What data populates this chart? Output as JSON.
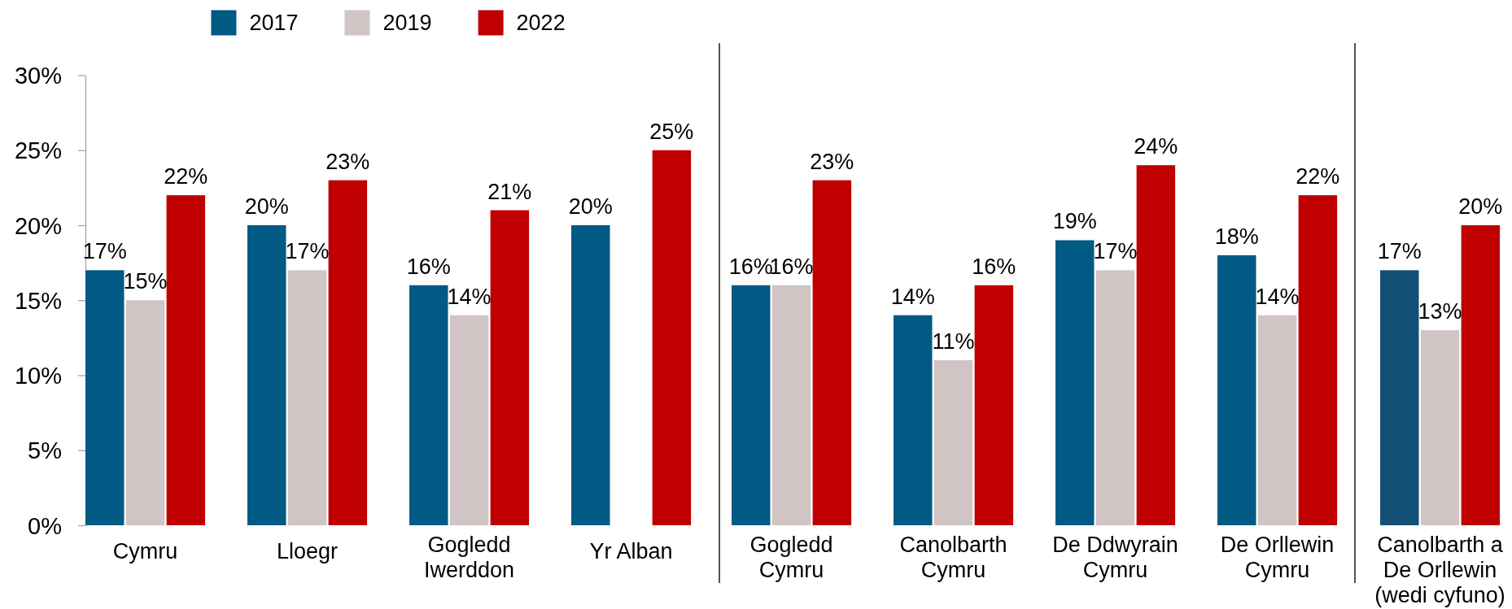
{
  "chart_data": [
    {
      "type": "bar",
      "categories": [
        "Cymru",
        "Lloegr",
        "Gogledd\nIwerddon",
        "Yr Alban"
      ],
      "series": [
        {
          "name": "2017",
          "color": "#005a84",
          "values": [
            17,
            20,
            16,
            20
          ],
          "value_labels": [
            "17%",
            "20%",
            "16%",
            "20%"
          ]
        },
        {
          "name": "2019",
          "color": "#d0c4c4",
          "values": [
            15,
            17,
            14,
            null
          ],
          "value_labels": [
            "15%",
            "17%",
            "14%",
            null
          ]
        },
        {
          "name": "2022",
          "color": "#c00000",
          "values": [
            22,
            23,
            21,
            25
          ],
          "value_labels": [
            "22%",
            "23%",
            "21%",
            "25%"
          ]
        }
      ],
      "ylim": [
        0,
        30
      ],
      "yticks": [
        {
          "value": 0,
          "label": "0%"
        },
        {
          "value": 5,
          "label": "5%"
        },
        {
          "value": 10,
          "label": "10%"
        },
        {
          "value": 15,
          "label": "15%"
        },
        {
          "value": 20,
          "label": "20%"
        },
        {
          "value": 25,
          "label": "25%"
        },
        {
          "value": 30,
          "label": "30%"
        }
      ],
      "legend": "top"
    },
    {
      "type": "bar",
      "categories": [
        "Gogledd\nCymru",
        "Canolbarth\nCymru",
        "De Ddwyrain\nCymru",
        "De Orllewin\nCymru"
      ],
      "series": [
        {
          "color": "#005a84",
          "values": [
            16,
            14,
            19,
            18
          ],
          "value_labels": [
            "16%",
            "14%",
            "19%",
            "18%"
          ]
        },
        {
          "color": "#d0c4c4",
          "values": [
            16,
            11,
            17,
            14
          ],
          "value_labels": [
            "16%",
            "11%",
            "17%",
            "14%"
          ]
        },
        {
          "color": "#c00000",
          "values": [
            23,
            16,
            24,
            22
          ],
          "value_labels": [
            "23%",
            "16%",
            "24%",
            "22%"
          ]
        }
      ],
      "ylim": [
        0,
        30
      ],
      "tick_labels": "x"
    },
    {
      "type": "bar",
      "categories": [
        "Canolbarth a\nDe Orllewin\n(wedi cyfuno)"
      ],
      "series": [
        {
          "color": "#124f75",
          "values": [
            17
          ],
          "value_labels": [
            "17%"
          ]
        },
        {
          "color": "#d0c4c4",
          "values": [
            13
          ],
          "value_labels": [
            "13%"
          ]
        },
        {
          "color": "#c00000",
          "values": [
            20
          ],
          "value_labels": [
            "20%"
          ]
        }
      ],
      "ylim": [
        0,
        30
      ],
      "tick_labels": "x"
    }
  ]
}
